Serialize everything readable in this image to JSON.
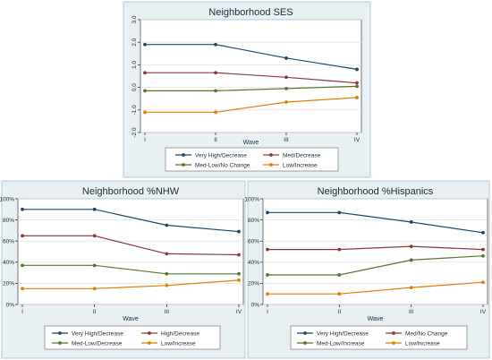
{
  "chart_data": [
    {
      "type": "line",
      "title": "Neighborhood  SES",
      "xlabel": "Wave",
      "ylabel": "",
      "categories": [
        "I",
        "II",
        "III",
        "IV"
      ],
      "yticks": [
        "-2.0",
        "-1.0",
        "0.0",
        "1.0",
        "2.0",
        "3.0"
      ],
      "ylim": [
        -2.0,
        3.0
      ],
      "y_rotated_ticks": true,
      "legend_position": "bottom",
      "grid": true,
      "series": [
        {
          "name": "Very High/Decrease",
          "values": [
            1.9,
            1.9,
            1.3,
            0.8
          ],
          "color": "#1a476f"
        },
        {
          "name": "Med/Decrease",
          "values": [
            0.65,
            0.65,
            0.45,
            0.2
          ],
          "color": "#90353b"
        },
        {
          "name": "Med-Low/No Change",
          "values": [
            -0.15,
            -0.15,
            -0.05,
            0.05
          ],
          "color": "#55752f"
        },
        {
          "name": "Low/Increase",
          "values": [
            -1.1,
            -1.1,
            -0.65,
            -0.45
          ],
          "color": "#e37e00"
        }
      ]
    },
    {
      "type": "line",
      "title": "Neighborhood  %NHW",
      "xlabel": "Wave",
      "ylabel": "",
      "categories": [
        "I",
        "II",
        "III",
        "IV"
      ],
      "yticks": [
        "0%",
        "20%",
        "40%",
        "60%",
        "80%",
        "100%"
      ],
      "ylim": [
        0,
        100
      ],
      "y_rotated_ticks": false,
      "legend_position": "bottom",
      "grid": true,
      "series": [
        {
          "name": "Very High/Decrease",
          "values": [
            90,
            90,
            75,
            69
          ],
          "color": "#1a476f"
        },
        {
          "name": "High/Decrease",
          "values": [
            65,
            65,
            48,
            47
          ],
          "color": "#90353b"
        },
        {
          "name": "Med-Low/Decrease",
          "values": [
            37,
            37,
            29,
            29
          ],
          "color": "#55752f"
        },
        {
          "name": "Low/Increase",
          "values": [
            15,
            15,
            18,
            23
          ],
          "color": "#e37e00"
        }
      ]
    },
    {
      "type": "line",
      "title": "Neighborhood  %Hispanics",
      "xlabel": "Wave",
      "ylabel": "",
      "categories": [
        "I",
        "II",
        "III",
        "IV"
      ],
      "yticks": [
        "0%",
        "20%",
        "40%",
        "60%",
        "80%",
        "100%"
      ],
      "ylim": [
        0,
        100
      ],
      "y_rotated_ticks": false,
      "legend_position": "bottom",
      "grid": true,
      "series": [
        {
          "name": "Very High/Decrease",
          "values": [
            87,
            87,
            78,
            68
          ],
          "color": "#1a476f"
        },
        {
          "name": "Med/No Change",
          "values": [
            52,
            52,
            55,
            52
          ],
          "color": "#90353b"
        },
        {
          "name": "Med-Low/Increase",
          "values": [
            28,
            28,
            42,
            46
          ],
          "color": "#55752f"
        },
        {
          "name": "Low/Increase",
          "values": [
            10,
            10,
            16,
            21
          ],
          "color": "#e37e00"
        }
      ]
    }
  ]
}
